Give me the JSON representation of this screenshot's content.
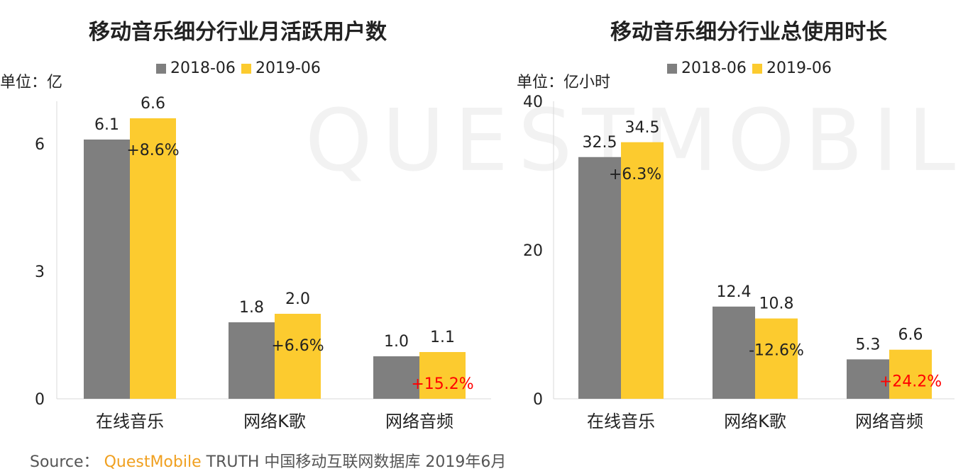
{
  "watermark": "QUESTMOBILE",
  "source": {
    "prefix": "Source：",
    "brand": "QuestMobile",
    "rest": "TRUTH 中国移动互联网数据库 2019年6月"
  },
  "colors": {
    "series_2018": "#7f7f7f",
    "series_2019": "#fccb2f",
    "negative_or_highlight": "#ff0000",
    "text": "#222222"
  },
  "chart_data": [
    {
      "type": "bar",
      "title": "移动音乐细分行业月活跃用户数",
      "unit_label": "单位：亿",
      "categories": [
        "在线音乐",
        "网络K歌",
        "网络音频"
      ],
      "series": [
        {
          "name": "2018-06",
          "values": [
            6.1,
            1.8,
            1.0
          ]
        },
        {
          "name": "2019-06",
          "values": [
            6.6,
            2.0,
            1.1
          ]
        }
      ],
      "growth": [
        "+8.6%",
        "+6.6%",
        "+15.2%"
      ],
      "growth_highlight": [
        false,
        false,
        true
      ],
      "value_labels": [
        [
          "6.1",
          "1.8",
          "1.0"
        ],
        [
          "6.6",
          "2.0",
          "1.1"
        ]
      ],
      "yticks": [
        0,
        3,
        6
      ],
      "ylim": [
        0,
        7
      ],
      "legend": "top"
    },
    {
      "type": "bar",
      "title": "移动音乐细分行业总使用时长",
      "unit_label": "单位：亿小时",
      "categories": [
        "在线音乐",
        "网络K歌",
        "网络音频"
      ],
      "series": [
        {
          "name": "2018-06",
          "values": [
            32.5,
            12.4,
            5.3
          ]
        },
        {
          "name": "2019-06",
          "values": [
            34.5,
            10.8,
            6.6
          ]
        }
      ],
      "growth": [
        "+6.3%",
        "-12.6%",
        "+24.2%"
      ],
      "growth_highlight": [
        false,
        false,
        true
      ],
      "value_labels": [
        [
          "32.5",
          "12.4",
          "5.3"
        ],
        [
          "34.5",
          "10.8",
          "6.6"
        ]
      ],
      "yticks": [
        0,
        20,
        40
      ],
      "ylim": [
        0,
        40
      ],
      "legend": "top"
    }
  ]
}
